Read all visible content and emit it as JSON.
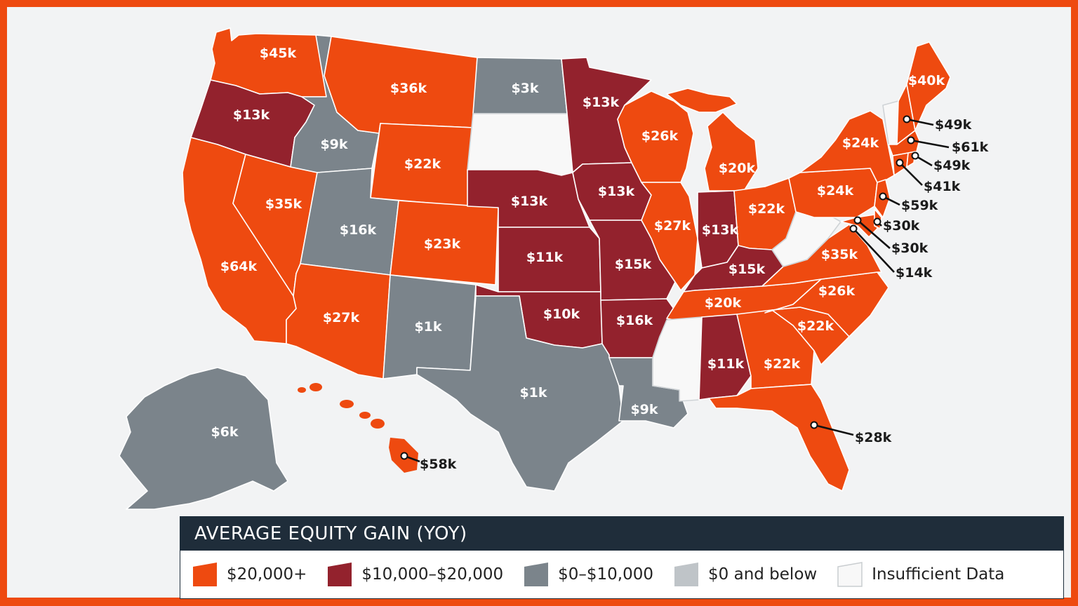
{
  "colors": {
    "band_20k_plus": "#ee4a10",
    "band_10k_20k": "#93222d",
    "band_0_10k": "#7b848b",
    "band_0_below": "#bfc4c8",
    "insufficient": "#f8f8f8",
    "border": "#ee4a10",
    "legend_header": "#1f2d3a"
  },
  "legend": {
    "title": "AVERAGE EQUITY GAIN (YOY)",
    "items": [
      {
        "label": "$20,000+",
        "color": "#ee4a10"
      },
      {
        "label": "$10,000–$20,000",
        "color": "#93222d"
      },
      {
        "label": "$0–$10,000",
        "color": "#7b848b"
      },
      {
        "label": "$0 and below",
        "color": "#bfc4c8"
      },
      {
        "label": "Insufficient Data",
        "color": "#f8f8f8"
      }
    ]
  },
  "states": {
    "WA": "$45k",
    "OR": "$13k",
    "CA": "$64k",
    "NV": "$35k",
    "ID": "$9k",
    "MT": "$36k",
    "WY": "$22k",
    "UT": "$16k",
    "AZ": "$27k",
    "CO": "$23k",
    "NM": "$1k",
    "ND": "$3k",
    "SD": "",
    "NE": "$13k",
    "KS": "$11k",
    "OK": "$10k",
    "TX": "$1k",
    "MN": "$13k",
    "IA": "$13k",
    "MO": "$15k",
    "AR": "$16k",
    "LA": "$9k",
    "WI": "$26k",
    "IL": "$27k",
    "MI": "$20k",
    "IN": "$13k",
    "OH": "$22k",
    "KY": "$15k",
    "TN": "$20k",
    "MS": "",
    "AL": "$11k",
    "GA": "$22k",
    "FL": "$28k",
    "SC": "$22k",
    "NC": "$26k",
    "VA": "$35k",
    "WV": "",
    "PA": "$24k",
    "NY": "$24k",
    "VT": "",
    "NH": "$49k",
    "ME": "$40k",
    "MA": "$61k",
    "RI": "$49k",
    "CT": "$41k",
    "NJ": "$59k",
    "DE": "$30k",
    "MD": "$30k",
    "DC": "$14k",
    "AK": "$6k",
    "HI": "$58k"
  }
}
